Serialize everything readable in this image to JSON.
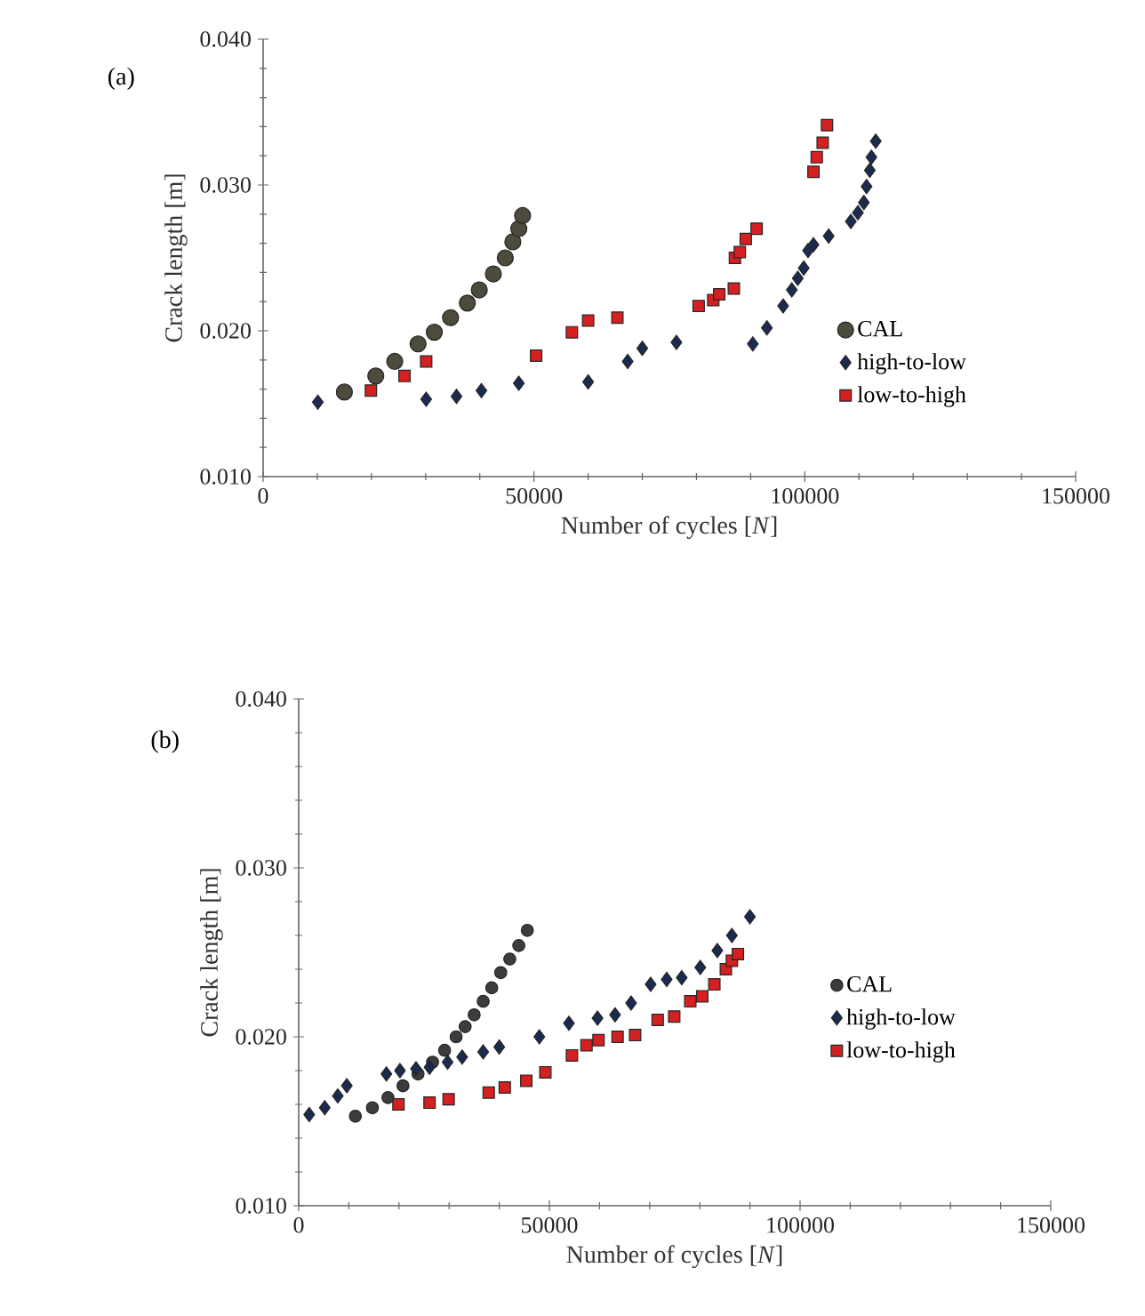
{
  "chart_data": [
    {
      "type": "scatter",
      "title": "(a)",
      "xlabel": "Number of cycles [*N*]",
      "ylabel": "Crack length [m]",
      "xlim": [
        0,
        150000
      ],
      "xticks": [
        0,
        50000,
        100000,
        150000
      ],
      "ylim": [
        0.01,
        0.04
      ],
      "yticks": [
        {
          "value": 0.01,
          "label": "0.010"
        },
        {
          "value": 0.02,
          "label": "0.020"
        },
        {
          "value": 0.03,
          "label": "0.030"
        },
        {
          "value": 0.04,
          "label": "0.040"
        }
      ],
      "grid": false,
      "legend": "right",
      "series": [
        {
          "name": "CAL",
          "color": "#4d4b3c",
          "marker": "circle",
          "x": [
            15000,
            20800,
            24300,
            28600,
            31600,
            34600,
            37700,
            39900,
            42500,
            44700,
            46100,
            47200,
            47900
          ],
          "values": [
            0.0158,
            0.0169,
            0.0179,
            0.0191,
            0.0199,
            0.0209,
            0.0219,
            0.0228,
            0.0239,
            0.025,
            0.0261,
            0.027,
            0.0279
          ]
        },
        {
          "name": "high-to-low",
          "color": "#1b2a4f",
          "marker": "diamond",
          "x": [
            10100,
            30100,
            35700,
            40300,
            47200,
            60000,
            67300,
            70000,
            76300,
            90400,
            93000,
            96000,
            97600,
            98700,
            99800,
            100600,
            101600,
            104400,
            108500,
            109800,
            110900,
            111400,
            112000,
            112300,
            113100
          ],
          "values": [
            0.0151,
            0.0153,
            0.0155,
            0.0159,
            0.0164,
            0.0165,
            0.0179,
            0.0188,
            0.0192,
            0.0191,
            0.0202,
            0.0217,
            0.0228,
            0.0236,
            0.0243,
            0.0255,
            0.0259,
            0.0265,
            0.0275,
            0.0281,
            0.0288,
            0.0299,
            0.031,
            0.0319,
            0.033
          ]
        },
        {
          "name": "low-to-high",
          "color": "#d42020",
          "marker": "square",
          "x": [
            19900,
            26100,
            30100,
            50400,
            57000,
            60000,
            65400,
            80400,
            83100,
            84200,
            86900,
            87100,
            88000,
            89100,
            91100,
            101600,
            102200,
            103300,
            104100
          ],
          "values": [
            0.0159,
            0.0169,
            0.0179,
            0.0183,
            0.0199,
            0.0207,
            0.0209,
            0.0217,
            0.0221,
            0.0225,
            0.0229,
            0.025,
            0.0254,
            0.0263,
            0.027,
            0.0309,
            0.0319,
            0.0329,
            0.0341
          ]
        }
      ]
    },
    {
      "type": "scatter",
      "title": "(b)",
      "xlabel": "Number of cycles [*N*]",
      "ylabel": "Crack length [m]",
      "xlim": [
        0,
        150000
      ],
      "xticks": [
        0,
        50000,
        100000,
        150000
      ],
      "ylim": [
        0.01,
        0.04
      ],
      "yticks": [
        {
          "value": 0.01,
          "label": "0.010"
        },
        {
          "value": 0.02,
          "label": "0.020"
        },
        {
          "value": 0.03,
          "label": "0.030"
        },
        {
          "value": 0.04,
          "label": "0.040"
        }
      ],
      "grid": false,
      "legend": "right",
      "series": [
        {
          "name": "CAL",
          "color": "#3c3c3c",
          "marker": "circle",
          "x": [
            11300,
            14700,
            17800,
            20800,
            23800,
            26700,
            29100,
            31400,
            33200,
            35000,
            36800,
            38500,
            40300,
            42100,
            43900,
            45600
          ],
          "values": [
            0.0153,
            0.0158,
            0.0164,
            0.0171,
            0.0178,
            0.0185,
            0.0192,
            0.02,
            0.0206,
            0.0213,
            0.0221,
            0.0229,
            0.0238,
            0.0246,
            0.0254,
            0.0263
          ]
        },
        {
          "name": "high-to-low",
          "color": "#1b2a4f",
          "marker": "diamond",
          "x": [
            2100,
            5200,
            7800,
            9600,
            17500,
            20200,
            23400,
            26100,
            29700,
            32600,
            36800,
            40000,
            48000,
            53900,
            59600,
            63100,
            66300,
            70200,
            73400,
            76400,
            80100,
            83500,
            86400,
            90000
          ],
          "values": [
            0.0154,
            0.0158,
            0.0165,
            0.0171,
            0.0178,
            0.018,
            0.0181,
            0.0182,
            0.0185,
            0.0188,
            0.0191,
            0.0194,
            0.02,
            0.0208,
            0.0211,
            0.0213,
            0.022,
            0.0231,
            0.0234,
            0.0235,
            0.0241,
            0.0251,
            0.026,
            0.0271
          ]
        },
        {
          "name": "low-to-high",
          "color": "#d42020",
          "marker": "square",
          "x": [
            19900,
            26100,
            29900,
            37900,
            41100,
            45400,
            49200,
            54500,
            57400,
            59800,
            63600,
            67100,
            71600,
            74900,
            78100,
            80500,
            82900,
            85200,
            86400,
            87600
          ],
          "values": [
            0.016,
            0.0161,
            0.0163,
            0.0167,
            0.017,
            0.0174,
            0.0179,
            0.0189,
            0.0195,
            0.0198,
            0.02,
            0.0201,
            0.021,
            0.0212,
            0.0221,
            0.0224,
            0.0231,
            0.024,
            0.0245,
            0.0249
          ]
        }
      ]
    }
  ]
}
